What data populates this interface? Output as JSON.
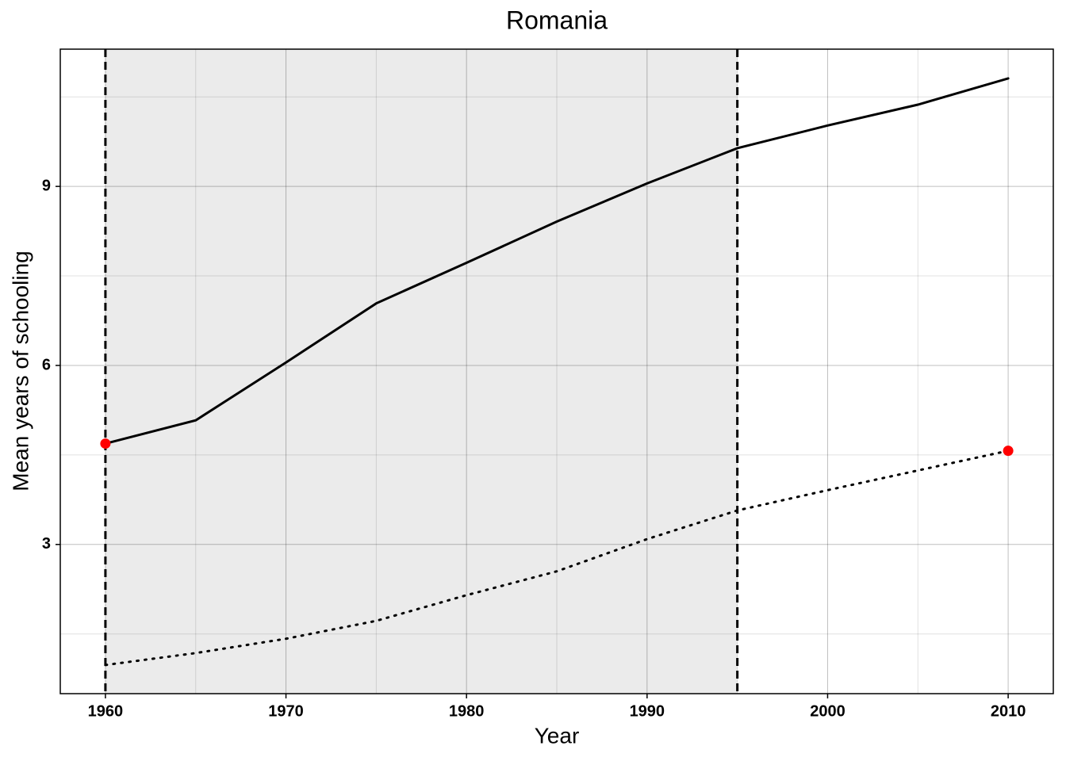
{
  "chart_data": {
    "type": "line",
    "title": "Romania",
    "x_label": "Year",
    "y_label": "Mean years of schooling",
    "x": [
      1960,
      1965,
      1970,
      1975,
      1980,
      1985,
      1990,
      1995,
      2000,
      2005,
      2010
    ],
    "series": [
      {
        "color": "#000000",
        "style": "solid",
        "values": [
          4.69,
          5.08,
          6.05,
          7.04,
          7.72,
          8.41,
          9.05,
          9.64,
          10.02,
          10.37,
          10.81
        ]
      },
      {
        "color": "#000000",
        "style": "dotted",
        "values": [
          0.98,
          1.18,
          1.42,
          1.72,
          2.15,
          2.55,
          3.09,
          3.57,
          3.91,
          4.24,
          4.57
        ]
      }
    ],
    "points": {
      "color": "#ff0000",
      "x": [
        1960,
        2010
      ],
      "values": [
        4.69,
        4.57
      ]
    },
    "shaded_region": {
      "color": "#ebebeb",
      "range": [
        1960,
        1995
      ]
    },
    "vlines": [
      1960,
      1995
    ],
    "xlim": [
      1957.5,
      2012.5
    ],
    "ylim": [
      0.5,
      11.3
    ],
    "xticks": [
      1960,
      1970,
      1980,
      1990,
      2000,
      2010
    ],
    "yticks": [
      3,
      6,
      9
    ],
    "x_minor_ticks": [
      1965,
      1975,
      1985,
      1995,
      2005
    ],
    "y_minor_ticks": [
      1.5,
      4.5,
      7.5,
      10.5
    ],
    "grid": true
  }
}
